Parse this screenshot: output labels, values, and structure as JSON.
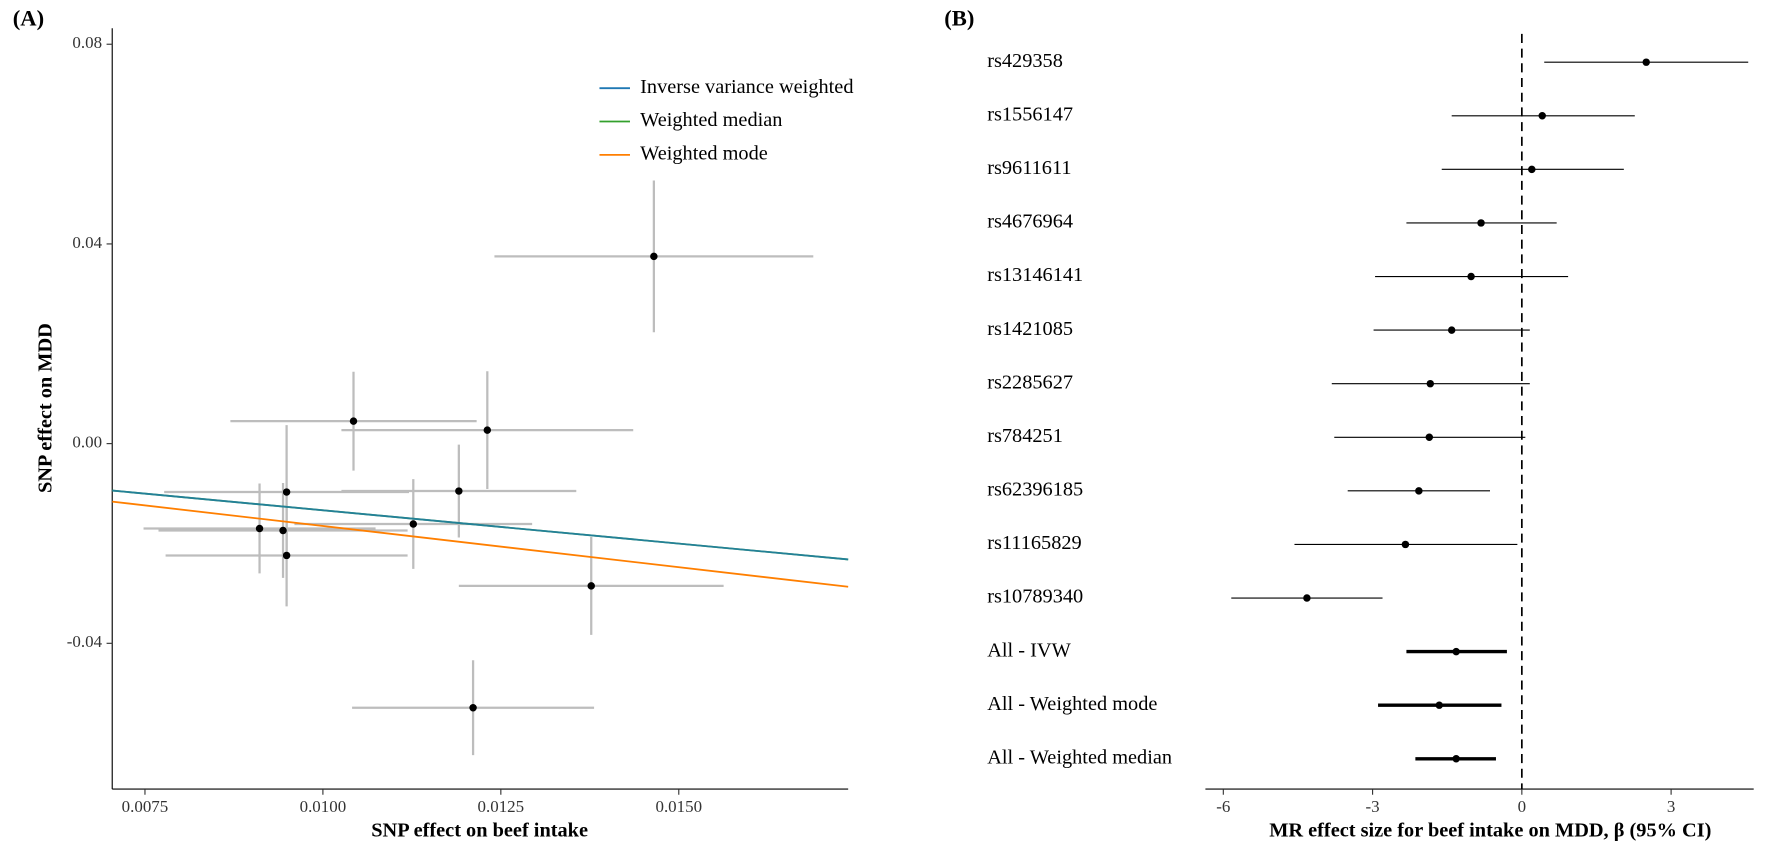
{
  "chart_data": [
    {
      "type": "scatter",
      "label": "(A)",
      "x_label": "SNP effect on beef intake",
      "y_label": "SNP effect on MDD",
      "x": [
        0.01465,
        0.01043,
        0.01231,
        0.01191,
        0.00949,
        0.01127,
        0.00911,
        0.00944,
        0.00949,
        0.01377,
        0.01211
      ],
      "values": [
        0.0375,
        0.0045,
        0.0027,
        -0.0095,
        -0.0097,
        -0.0161,
        -0.017,
        -0.0174,
        -0.0224,
        -0.0285,
        -0.0529
      ],
      "x_err": [
        0.00224,
        0.00173,
        0.00205,
        0.00165,
        0.00172,
        0.00167,
        0.00163,
        0.00175,
        0.0017,
        0.00186,
        0.0017
      ],
      "y_err": [
        0.0152,
        0.0099,
        0.0118,
        0.0093,
        0.0134,
        0.009,
        0.009,
        0.0095,
        0.0102,
        0.0098,
        0.0095
      ],
      "point_color": "#000000",
      "error_color": "#bdbdbd",
      "lines": [
        {
          "name": "Inverse variance weighted",
          "color": "#1f78b4",
          "slope": -1.335
        },
        {
          "name": "Weighted median",
          "color": "#33a02c",
          "slope": -1.335
        },
        {
          "name": "Weighted mode",
          "color": "#ff7f00",
          "slope": -1.65
        }
      ],
      "legend": "top-right",
      "xlim": [
        0.00704,
        0.01738
      ],
      "xticks": [
        0.0075,
        {
          "value": 0.01,
          "label": "0.0100"
        },
        0.0125,
        {
          "value": 0.015,
          "label": "0.0150"
        }
      ],
      "ylim": [
        -0.0692,
        0.0832
      ],
      "yticks": [
        -0.04,
        {
          "value": 0,
          "label": "0.00"
        },
        0.04,
        0.08
      ]
    },
    {
      "type": "forest",
      "label": "(B)",
      "x_label": "MR effect size for beef intake on MDD, β (95% CI)",
      "categories": [
        "rs429358",
        "rs1556147",
        "rs9611611",
        "rs4676964",
        "rs13146141",
        "rs1421085",
        "rs2285627",
        "rs784251",
        "rs62396185",
        "rs11165829",
        "rs10789340",
        "All - IVW",
        "All - Weighted mode",
        "All - Weighted median"
      ],
      "values": [
        2.5,
        0.41,
        0.2,
        -0.82,
        -1.02,
        -1.41,
        -1.84,
        -1.86,
        -2.07,
        -2.34,
        -4.32,
        -1.32,
        -1.66,
        -1.32
      ],
      "lower": [
        0.45,
        -1.41,
        -1.61,
        -2.32,
        -2.95,
        -2.98,
        -3.82,
        -3.77,
        -3.5,
        -4.57,
        -5.84,
        -2.32,
        -2.89,
        -2.14
      ],
      "upper": [
        4.55,
        2.27,
        2.05,
        0.7,
        0.93,
        0.16,
        0.16,
        0.07,
        -0.64,
        -0.09,
        -2.8,
        -0.3,
        -0.41,
        -0.52
      ],
      "summary": [
        false,
        false,
        false,
        false,
        false,
        false,
        false,
        false,
        false,
        false,
        false,
        true,
        true,
        true
      ],
      "reference_line": 0,
      "color": "#000000",
      "xlim": [
        -6.36,
        4.66
      ],
      "xticks": [
        -6,
        -3,
        0,
        3
      ]
    }
  ]
}
